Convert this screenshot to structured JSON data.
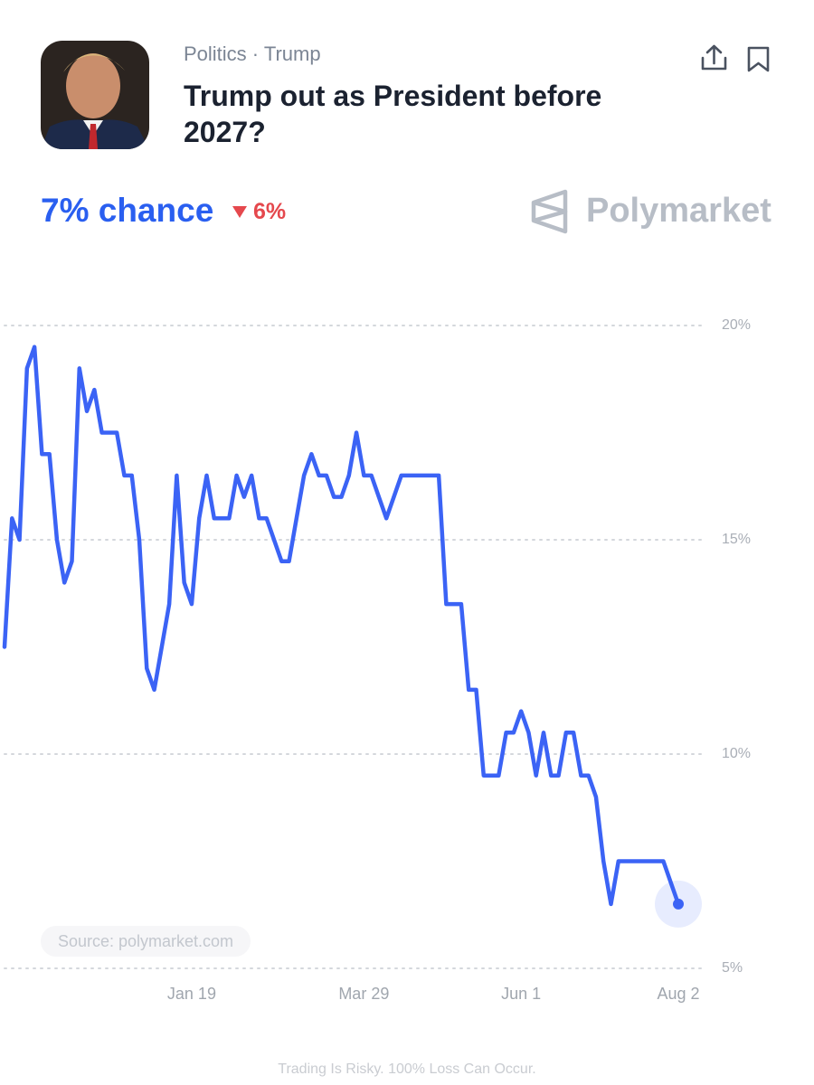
{
  "header": {
    "category": "Politics · Trump",
    "title": "Trump out as President before 2027?",
    "chance": "7% chance",
    "change": "6%",
    "brand": "Polymarket"
  },
  "chart_data": {
    "type": "line",
    "categories": [
      null,
      null,
      null,
      null,
      null,
      null,
      null,
      null,
      null,
      null,
      null,
      null,
      null,
      null,
      null,
      null,
      null,
      null,
      null,
      null,
      null,
      null,
      null,
      null,
      null,
      "Jan 19",
      null,
      null,
      null,
      null,
      null,
      null,
      null,
      null,
      null,
      null,
      null,
      null,
      null,
      null,
      null,
      null,
      null,
      null,
      null,
      null,
      null,
      null,
      "Mar 29",
      null,
      null,
      null,
      null,
      null,
      null,
      null,
      null,
      null,
      null,
      null,
      null,
      null,
      null,
      null,
      null,
      null,
      null,
      null,
      null,
      "Jun 1",
      null,
      null,
      null,
      null,
      null,
      null,
      null,
      null,
      null,
      null,
      null,
      null,
      null,
      null,
      null,
      null,
      null,
      null,
      null,
      null,
      "Aug 2"
    ],
    "values": [
      12.5,
      15.5,
      15,
      19,
      19.5,
      17,
      17,
      15,
      14,
      14.5,
      19,
      18,
      18.5,
      17.5,
      17.5,
      17.5,
      16.5,
      16.5,
      15,
      12,
      11.5,
      12.5,
      13.5,
      16.5,
      14,
      13.5,
      15.5,
      16.5,
      15.5,
      15.5,
      15.5,
      16.5,
      16,
      16.5,
      15.5,
      15.5,
      15,
      14.5,
      14.5,
      15.5,
      16.5,
      17,
      16.5,
      16.5,
      16,
      16,
      16.5,
      17.5,
      16.5,
      16.5,
      16,
      15.5,
      16,
      16.5,
      16.5,
      16.5,
      16.5,
      16.5,
      16.5,
      13.5,
      13.5,
      13.5,
      11.5,
      11.5,
      9.5,
      9.5,
      9.5,
      10.5,
      10.5,
      11,
      10.5,
      9.5,
      10.5,
      9.5,
      9.5,
      10.5,
      10.5,
      9.5,
      9.5,
      9,
      7.5,
      6.5,
      7.5,
      7.5,
      7.5,
      7.5,
      7.5,
      7.5,
      7.5,
      7,
      6.5
    ],
    "color": "#3b63f5",
    "ylim": [
      5,
      20
    ],
    "yticks": [
      {
        "value": 5,
        "label": "5%"
      },
      {
        "value": 10,
        "label": "10%"
      },
      {
        "value": 15,
        "label": "15%"
      },
      {
        "value": 20,
        "label": "20%"
      }
    ],
    "grid": true,
    "source": "Source: polymarket.com",
    "disclaimer": "Trading Is Risky. 100% Loss Can Occur."
  }
}
